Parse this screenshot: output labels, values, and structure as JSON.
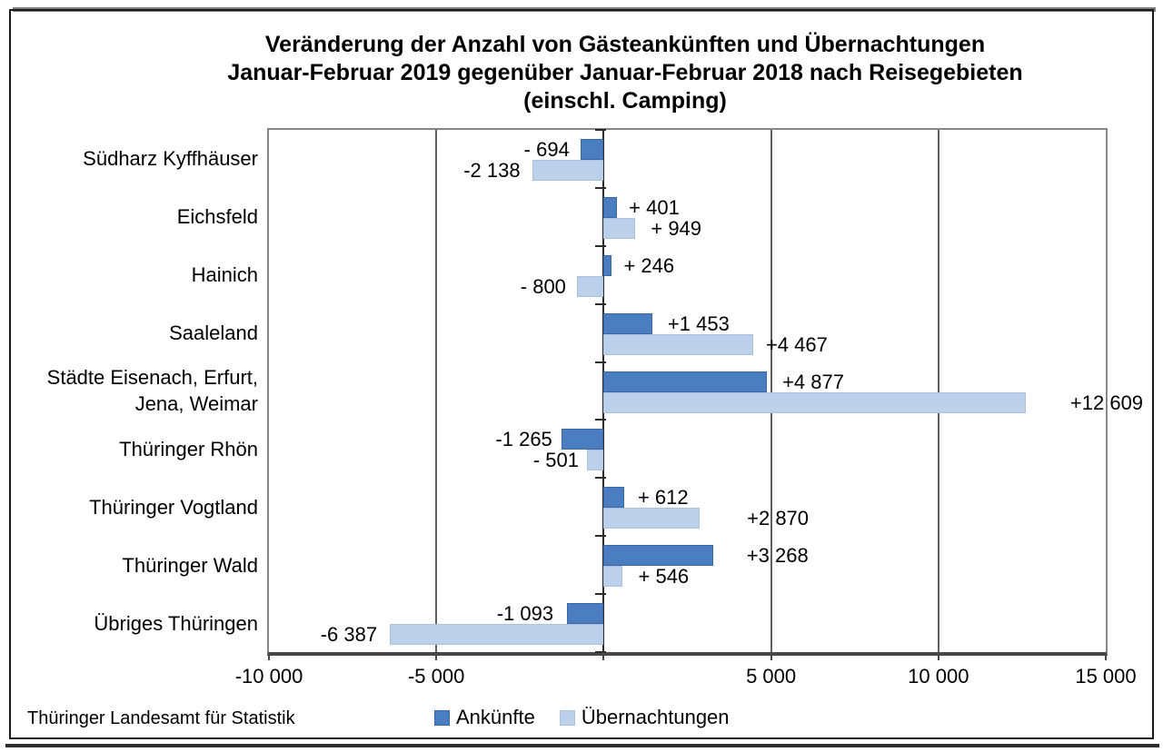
{
  "title": {
    "line1": "Veränderung der Anzahl von Gästeankünften und Übernachtungen",
    "line2": "Januar-Februar 2019 gegenüber Januar-Februar 2018 nach Reisegebieten",
    "line3": "(einschl. Camping)"
  },
  "source": "Thüringer Landesamt für Statistik",
  "colors": {
    "ankuenfte": "#4a7ec1",
    "uebernachtungen": "#bdd0e9"
  },
  "chart_data": {
    "type": "bar",
    "orientation": "horizontal",
    "title": "Veränderung der Anzahl von Gästeankünften und Übernachtungen Januar-Februar 2019 gegenüber Januar-Februar 2018 nach Reisegebieten (einschl. Camping)",
    "categories": [
      "Südharz Kyffhäuser",
      "Eichsfeld",
      "Hainich",
      "Saaleland",
      "Städte Eisenach, Erfurt,\nJena, Weimar",
      "Thüringer Rhön",
      "Thüringer Vogtland",
      "Thüringer Wald",
      "Übriges Thüringen"
    ],
    "series": [
      {
        "name": "Ankünfte",
        "color": "#4a7ec1",
        "border_color": "#3a68a4",
        "values": [
          -694,
          401,
          246,
          1453,
          4877,
          -1265,
          612,
          3268,
          -1093
        ],
        "labels": [
          "- 694",
          "+ 401",
          "+ 246",
          "+1 453",
          "+4 877",
          "-1 265",
          "+ 612",
          "+3 268",
          "-1 093"
        ],
        "label_dx": [
          12,
          13,
          13,
          17,
          17,
          10,
          15,
          37,
          15
        ]
      },
      {
        "name": "Übernachtungen",
        "color": "#bdd0e9",
        "border_color": "#a9c2de",
        "values": [
          -2138,
          949,
          -800,
          4467,
          12609,
          -501,
          2870,
          546,
          -6387
        ],
        "labels": [
          "-2 138",
          "+ 949",
          "- 800",
          "+4 467",
          "+12 609",
          "- 501",
          "+2 870",
          "+ 546",
          "-6 387"
        ],
        "label_dx": [
          13,
          17,
          12,
          14,
          49,
          9,
          52,
          18,
          14
        ]
      }
    ],
    "xlim": [
      -10000,
      15000
    ],
    "x_ticks": [
      {
        "value": -10000,
        "label": "-10 000"
      },
      {
        "value": -5000,
        "label": "-5 000"
      },
      {
        "value": 0,
        "label": ""
      },
      {
        "value": 5000,
        "label": "5 000"
      },
      {
        "value": 10000,
        "label": "10 000"
      },
      {
        "value": 15000,
        "label": "15 000"
      }
    ],
    "gridlines": [
      -5000,
      5000,
      10000
    ],
    "grid": true,
    "legend_position": "bottom",
    "source": "Thüringer Landesamt für Statistik"
  }
}
